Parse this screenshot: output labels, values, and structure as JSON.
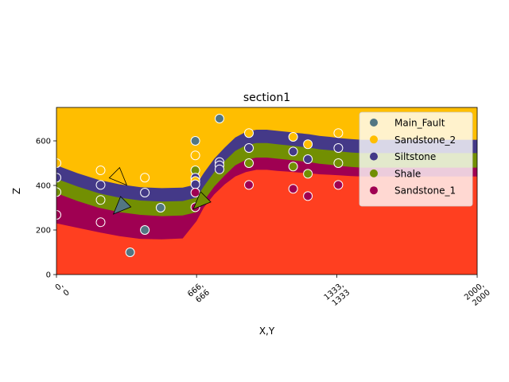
{
  "chart_data": {
    "type": "geological-section",
    "title": "section1",
    "xlabel": "X,Y",
    "ylabel": "Z",
    "xlim": [
      0,
      2000
    ],
    "ylim": [
      0,
      750
    ],
    "xticks": [
      {
        "value": 0,
        "label": [
          "0,",
          "0"
        ]
      },
      {
        "value": 666,
        "label": [
          "666,",
          "666"
        ]
      },
      {
        "value": 1333,
        "label": [
          "1333,",
          "1333"
        ]
      },
      {
        "value": 2000,
        "label": [
          "2000,",
          "2000"
        ]
      }
    ],
    "yticks": [
      0,
      200,
      400,
      600
    ],
    "legend_position": "top-right",
    "formations": [
      {
        "name": "Main_Fault",
        "color": "#527682"
      },
      {
        "name": "Sandstone_2",
        "color": "#ffbe00"
      },
      {
        "name": "Siltstone",
        "color": "#443988"
      },
      {
        "name": "Shale",
        "color": "#728f02"
      },
      {
        "name": "Sandstone_1",
        "color": "#9f0052"
      }
    ],
    "basement_color": "#ff3f20",
    "boundaries": {
      "x": [
        0,
        100,
        200,
        300,
        400,
        500,
        600,
        666,
        700,
        750,
        800,
        850,
        900,
        950,
        1000,
        1050,
        1100,
        1150,
        1200,
        1250,
        1300,
        1350,
        1400,
        1450,
        1500,
        1600,
        1700,
        1800,
        1900,
        2000
      ],
      "top_siltstone": [
        490,
        455,
        425,
        405,
        392,
        388,
        390,
        405,
        455,
        520,
        570,
        615,
        640,
        650,
        650,
        645,
        640,
        635,
        630,
        622,
        618,
        612,
        608,
        605,
        605,
        605,
        605,
        605,
        605,
        605
      ],
      "top_shale": [
        430,
        395,
        365,
        345,
        332,
        328,
        330,
        345,
        395,
        460,
        510,
        555,
        580,
        590,
        590,
        585,
        580,
        575,
        570,
        562,
        558,
        552,
        548,
        545,
        545,
        545,
        545,
        545,
        545,
        545
      ],
      "top_sandstone_1": [
        365,
        330,
        300,
        280,
        268,
        262,
        265,
        280,
        330,
        395,
        445,
        490,
        515,
        525,
        525,
        520,
        515,
        510,
        505,
        497,
        493,
        487,
        483,
        480,
        480,
        480,
        480,
        480,
        480,
        480
      ],
      "top_basement": [
        230,
        210,
        190,
        172,
        160,
        158,
        162,
        240,
        300,
        360,
        405,
        440,
        460,
        470,
        470,
        465,
        462,
        458,
        455,
        450,
        448,
        445,
        442,
        440,
        440,
        440,
        440,
        440,
        440,
        440
      ]
    },
    "points": [
      {
        "x": 0,
        "z": 500,
        "formation": "Sandstone_2"
      },
      {
        "x": 0,
        "z": 435,
        "formation": "Siltstone"
      },
      {
        "x": 0,
        "z": 370,
        "formation": "Shale"
      },
      {
        "x": 0,
        "z": 268,
        "formation": "Sandstone_1"
      },
      {
        "x": 210,
        "z": 468,
        "formation": "Sandstone_2"
      },
      {
        "x": 210,
        "z": 402,
        "formation": "Siltstone"
      },
      {
        "x": 210,
        "z": 335,
        "formation": "Shale"
      },
      {
        "x": 210,
        "z": 235,
        "formation": "Sandstone_1"
      },
      {
        "x": 350,
        "z": 100,
        "formation": "Main_Fault"
      },
      {
        "x": 420,
        "z": 435,
        "formation": "Sandstone_2"
      },
      {
        "x": 420,
        "z": 368,
        "formation": "Siltstone"
      },
      {
        "x": 420,
        "z": 200,
        "formation": "Main_Fault"
      },
      {
        "x": 495,
        "z": 300,
        "formation": "Main_Fault"
      },
      {
        "x": 660,
        "z": 600,
        "formation": "Main_Fault"
      },
      {
        "x": 660,
        "z": 535,
        "formation": "Sandstone_2"
      },
      {
        "x": 660,
        "z": 468,
        "formation": "Shale"
      },
      {
        "x": 660,
        "z": 435,
        "formation": "Siltstone"
      },
      {
        "x": 660,
        "z": 420,
        "formation": "Sandstone_2"
      },
      {
        "x": 660,
        "z": 405,
        "formation": "Siltstone"
      },
      {
        "x": 660,
        "z": 368,
        "formation": "Sandstone_1"
      },
      {
        "x": 660,
        "z": 302,
        "formation": "Sandstone_1"
      },
      {
        "x": 775,
        "z": 700,
        "formation": "Main_Fault"
      },
      {
        "x": 775,
        "z": 505,
        "formation": "Siltstone"
      },
      {
        "x": 775,
        "z": 490,
        "formation": "Siltstone"
      },
      {
        "x": 775,
        "z": 472,
        "formation": "Siltstone"
      },
      {
        "x": 915,
        "z": 635,
        "formation": "Sandstone_2"
      },
      {
        "x": 915,
        "z": 568,
        "formation": "Siltstone"
      },
      {
        "x": 915,
        "z": 500,
        "formation": "Shale"
      },
      {
        "x": 915,
        "z": 402,
        "formation": "Sandstone_1"
      },
      {
        "x": 1125,
        "z": 618,
        "formation": "Sandstone_2"
      },
      {
        "x": 1125,
        "z": 552,
        "formation": "Siltstone"
      },
      {
        "x": 1125,
        "z": 485,
        "formation": "Shale"
      },
      {
        "x": 1125,
        "z": 385,
        "formation": "Sandstone_1"
      },
      {
        "x": 1195,
        "z": 585,
        "formation": "Sandstone_2"
      },
      {
        "x": 1195,
        "z": 518,
        "formation": "Siltstone"
      },
      {
        "x": 1195,
        "z": 452,
        "formation": "Shale"
      },
      {
        "x": 1195,
        "z": 352,
        "formation": "Sandstone_1"
      },
      {
        "x": 1340,
        "z": 635,
        "formation": "Sandstone_2"
      },
      {
        "x": 1340,
        "z": 568,
        "formation": "Siltstone"
      },
      {
        "x": 1340,
        "z": 500,
        "formation": "Shale"
      },
      {
        "x": 1340,
        "z": 402,
        "formation": "Sandstone_1"
      }
    ],
    "orientations": [
      {
        "x": 285,
        "z": 430,
        "dir": 1.0,
        "formation": "Sandstone_2"
      },
      {
        "x": 320,
        "z": 300,
        "dir": -1.0,
        "formation": "Main_Fault"
      },
      {
        "x": 700,
        "z": 322,
        "dir": -1.0,
        "formation": "Shale"
      }
    ]
  }
}
